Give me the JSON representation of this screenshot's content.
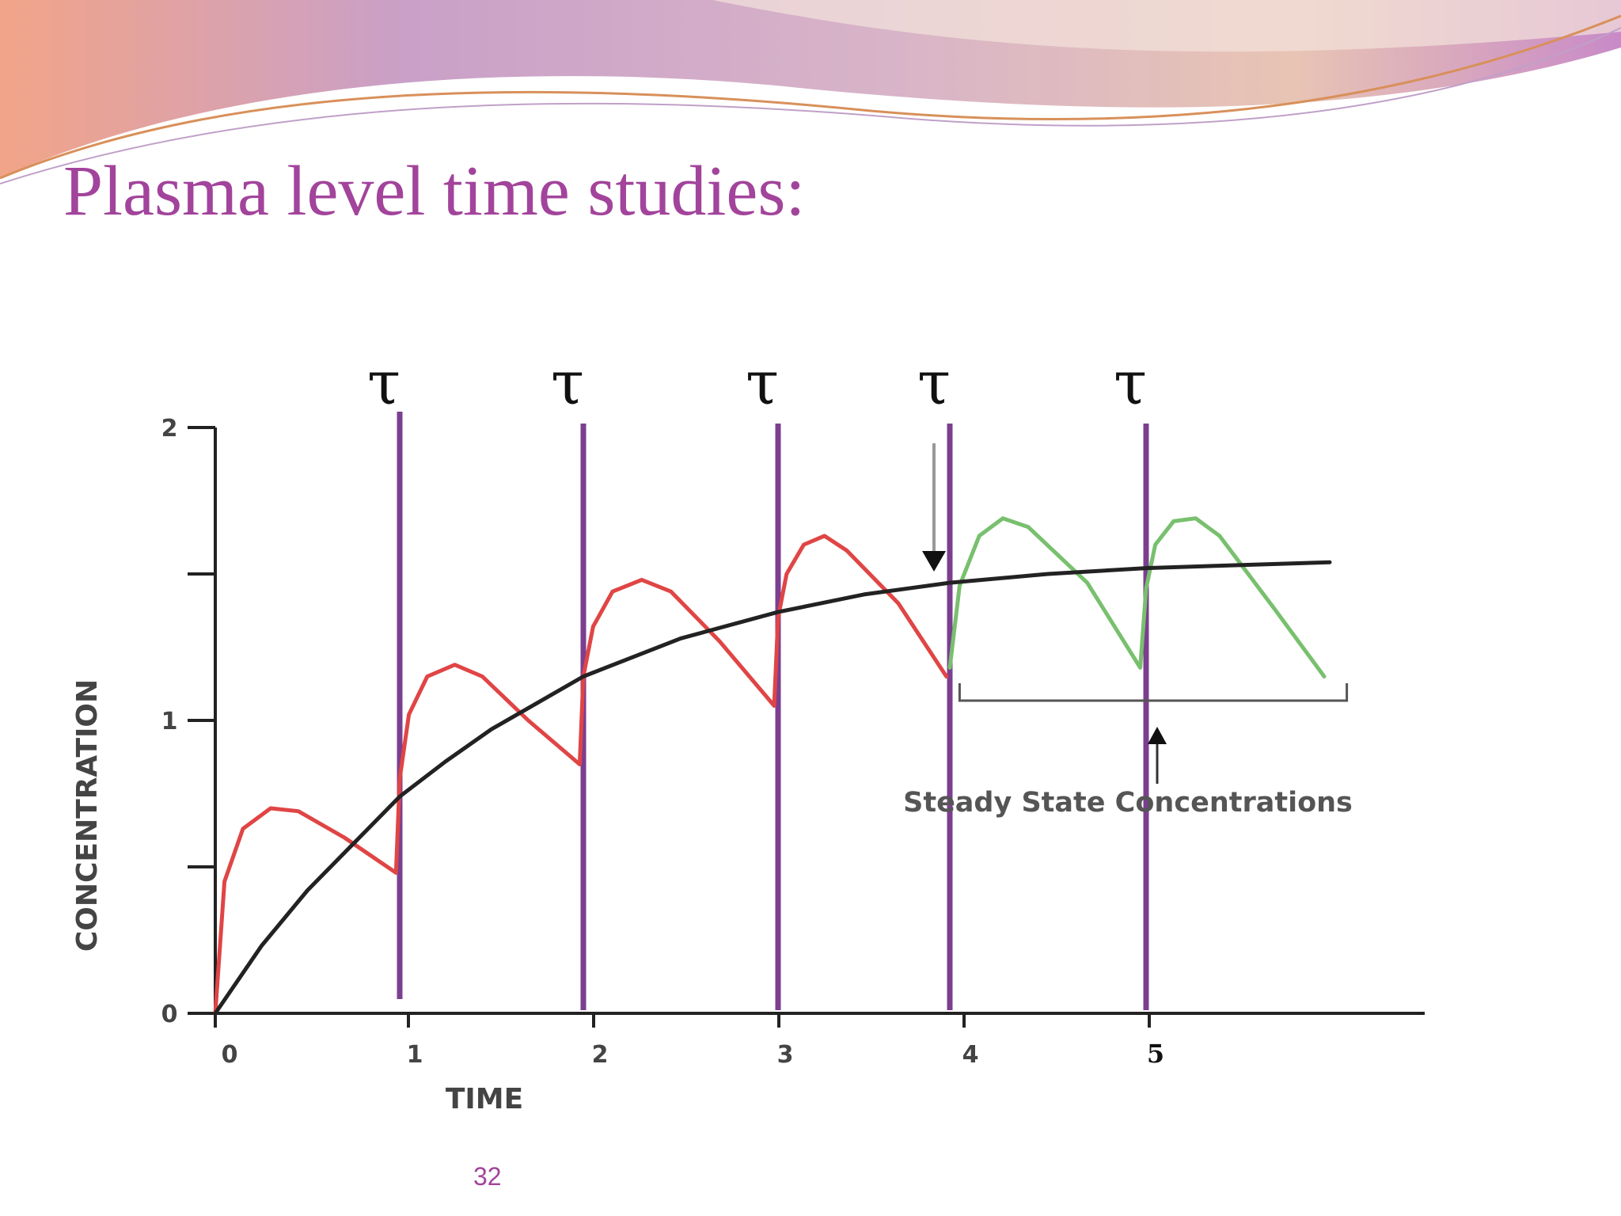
{
  "slide": {
    "title": "Plasma level time studies:",
    "page_number": "32"
  },
  "colors": {
    "title": "#a2449b",
    "dose_line": "#7b3f8f",
    "buildup_curve": "#e04545",
    "steady_curve": "#78c06e",
    "average_curve": "#222222"
  },
  "chart_data": {
    "type": "line",
    "title": "",
    "xlabel": "TIME",
    "ylabel": "CONCENTRATION",
    "xlim": [
      0,
      6.6
    ],
    "ylim": [
      0,
      2
    ],
    "x_ticks": [
      {
        "value": 0,
        "label": "0"
      },
      {
        "value": 1,
        "label": "1"
      },
      {
        "value": 2,
        "label": "2"
      },
      {
        "value": 3,
        "label": "3"
      },
      {
        "value": 4,
        "label": "4"
      },
      {
        "value": 5,
        "label": "5"
      }
    ],
    "y_ticks": [
      {
        "value": 0,
        "label": "0"
      },
      {
        "value": 0.5,
        "label": ""
      },
      {
        "value": 1,
        "label": "1"
      },
      {
        "value": 1.5,
        "label": ""
      },
      {
        "value": 2,
        "label": "2"
      }
    ],
    "dose_interval_symbol": "τ",
    "dose_times": [
      1,
      2,
      3,
      4,
      5
    ],
    "series": [
      {
        "role": "buildup",
        "color": "#e04545",
        "points": [
          [
            0,
            0
          ],
          [
            0.05,
            0.45
          ],
          [
            0.15,
            0.63
          ],
          [
            0.3,
            0.7
          ],
          [
            0.45,
            0.69
          ],
          [
            0.7,
            0.6
          ],
          [
            0.98,
            0.48
          ],
          [
            1.0,
            0.8
          ],
          [
            1.05,
            1.02
          ],
          [
            1.15,
            1.15
          ],
          [
            1.3,
            1.19
          ],
          [
            1.45,
            1.15
          ],
          [
            1.7,
            1.0
          ],
          [
            1.98,
            0.85
          ],
          [
            2.0,
            1.15
          ],
          [
            2.05,
            1.32
          ],
          [
            2.15,
            1.44
          ],
          [
            2.3,
            1.48
          ],
          [
            2.45,
            1.44
          ],
          [
            2.7,
            1.27
          ],
          [
            2.98,
            1.05
          ],
          [
            3.0,
            1.35
          ],
          [
            3.05,
            1.5
          ],
          [
            3.15,
            1.6
          ],
          [
            3.27,
            1.63
          ],
          [
            3.4,
            1.58
          ],
          [
            3.7,
            1.4
          ],
          [
            3.98,
            1.15
          ]
        ]
      },
      {
        "role": "steady_state",
        "color": "#78c06e",
        "points": [
          [
            4.0,
            1.18
          ],
          [
            4.05,
            1.46
          ],
          [
            4.15,
            1.63
          ],
          [
            4.27,
            1.69
          ],
          [
            4.4,
            1.66
          ],
          [
            4.7,
            1.47
          ],
          [
            4.97,
            1.18
          ],
          [
            5.0,
            1.45
          ],
          [
            5.05,
            1.6
          ],
          [
            5.15,
            1.68
          ],
          [
            5.27,
            1.69
          ],
          [
            5.4,
            1.63
          ],
          [
            5.7,
            1.38
          ],
          [
            5.97,
            1.15
          ]
        ]
      },
      {
        "role": "average",
        "color": "#222222",
        "points": [
          [
            0,
            0
          ],
          [
            0.25,
            0.23
          ],
          [
            0.5,
            0.42
          ],
          [
            0.75,
            0.58
          ],
          [
            1.0,
            0.74
          ],
          [
            1.25,
            0.86
          ],
          [
            1.5,
            0.97
          ],
          [
            1.75,
            1.06
          ],
          [
            2.0,
            1.15
          ],
          [
            2.5,
            1.28
          ],
          [
            3.0,
            1.37
          ],
          [
            3.5,
            1.43
          ],
          [
            4.0,
            1.47
          ],
          [
            4.5,
            1.5
          ],
          [
            5.0,
            1.52
          ],
          [
            5.5,
            1.53
          ],
          [
            6.0,
            1.54
          ]
        ]
      }
    ],
    "annotations": {
      "steady_state_label": "Steady State Concentrations",
      "bracket_range": [
        4.05,
        6.05
      ],
      "bracket_level": 1.0,
      "arrow_down_x": 3.92,
      "arrow_down_from_y": 1.95,
      "arrow_down_to_y": 1.5
    }
  }
}
